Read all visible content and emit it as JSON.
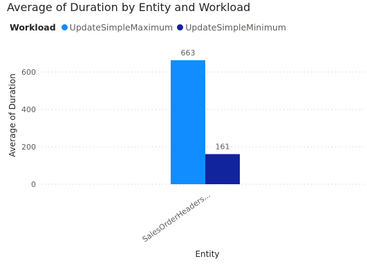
{
  "chart_data": {
    "type": "bar",
    "title": "Average of Duration by Entity and Workload",
    "legend_title": "Workload",
    "legend_position": "top-left",
    "xlabel": "Entity",
    "ylabel": "Average of Duration",
    "categories": [
      "SalesOrderHeaders..."
    ],
    "series": [
      {
        "name": "UpdateSimpleMaximum",
        "color": "#118dff",
        "values": [
          663
        ],
        "labels": [
          "663"
        ]
      },
      {
        "name": "UpdateSimpleMinimum",
        "color": "#12239e",
        "values": [
          161
        ],
        "labels": [
          "161"
        ]
      }
    ],
    "yticks": [
      0,
      200,
      400,
      600
    ],
    "ytick_labels": [
      "0",
      "200",
      "400",
      "600"
    ],
    "ylim": [
      0,
      663
    ],
    "grid": true
  }
}
